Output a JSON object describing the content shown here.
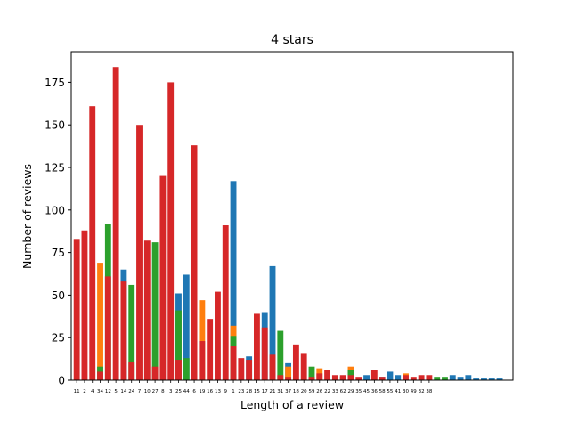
{
  "chart_data": {
    "type": "bar",
    "title": "4 stars",
    "xlabel": "Length of a review",
    "ylabel": "Number of reviews",
    "ylim": [
      0,
      193
    ],
    "yticks": [
      0,
      25,
      50,
      75,
      100,
      125,
      150,
      175
    ],
    "grid": false,
    "legend": "none",
    "colors": [
      "#1f77b4",
      "#ff7f0e",
      "#2ca02c",
      "#d62728"
    ],
    "categories": [
      "11",
      "2",
      "4",
      "34",
      "12",
      "5",
      "14",
      "24",
      "7",
      "10",
      "27",
      "8",
      "3",
      "25",
      "44",
      "6",
      "19",
      "16",
      "13",
      "9",
      "1",
      "23",
      "28",
      "15",
      "17",
      "21",
      "31",
      "37",
      "18",
      "20",
      "59",
      "26",
      "22",
      "33",
      "62",
      "29",
      "35",
      "45",
      "36",
      "58",
      "55",
      "41",
      "30",
      "49",
      "32",
      "38",
      "",
      "",
      "",
      "",
      "",
      "",
      "",
      "",
      "",
      ""
    ],
    "series": [
      {
        "values": [
          0,
          0,
          0,
          0,
          0,
          0,
          65,
          0,
          0,
          0,
          0,
          0,
          0,
          51,
          62,
          0,
          0,
          0,
          0,
          0,
          117,
          0,
          14,
          0,
          40,
          67,
          0,
          10,
          0,
          0,
          0,
          0,
          0,
          0,
          0,
          0,
          0,
          3,
          0,
          2,
          5,
          3,
          0,
          0,
          0,
          0,
          0,
          0,
          3,
          2,
          3,
          1,
          1,
          1,
          1,
          0
        ]
      },
      {
        "values": [
          0,
          0,
          0,
          69,
          0,
          0,
          0,
          0,
          0,
          0,
          0,
          0,
          0,
          0,
          0,
          0,
          47,
          0,
          0,
          0,
          32,
          0,
          0,
          0,
          0,
          0,
          0,
          8,
          0,
          0,
          0,
          7,
          0,
          0,
          0,
          8,
          0,
          0,
          0,
          0,
          0,
          0,
          4,
          0,
          0,
          0,
          0,
          0,
          0,
          0,
          0,
          0,
          0,
          0,
          0,
          0
        ]
      },
      {
        "values": [
          0,
          0,
          0,
          8,
          92,
          0,
          0,
          56,
          0,
          0,
          81,
          0,
          0,
          41,
          13,
          0,
          0,
          0,
          0,
          0,
          26,
          0,
          0,
          0,
          0,
          0,
          29,
          0,
          0,
          0,
          8,
          0,
          0,
          0,
          2,
          6,
          0,
          0,
          0,
          0,
          0,
          0,
          0,
          0,
          0,
          0,
          2,
          2,
          0,
          0,
          0,
          0,
          0,
          0,
          0,
          0
        ]
      },
      {
        "values": [
          83,
          88,
          161,
          5,
          61,
          184,
          58,
          11,
          150,
          82,
          8,
          120,
          175,
          12,
          0,
          138,
          23,
          36,
          52,
          91,
          20,
          13,
          12,
          39,
          31,
          15,
          3,
          2,
          21,
          16,
          2,
          4,
          6,
          3,
          3,
          3,
          2,
          0,
          6,
          2,
          0,
          0,
          3,
          2,
          3,
          3,
          0,
          0,
          0,
          0,
          0,
          0,
          0,
          0,
          0,
          0
        ]
      }
    ]
  }
}
